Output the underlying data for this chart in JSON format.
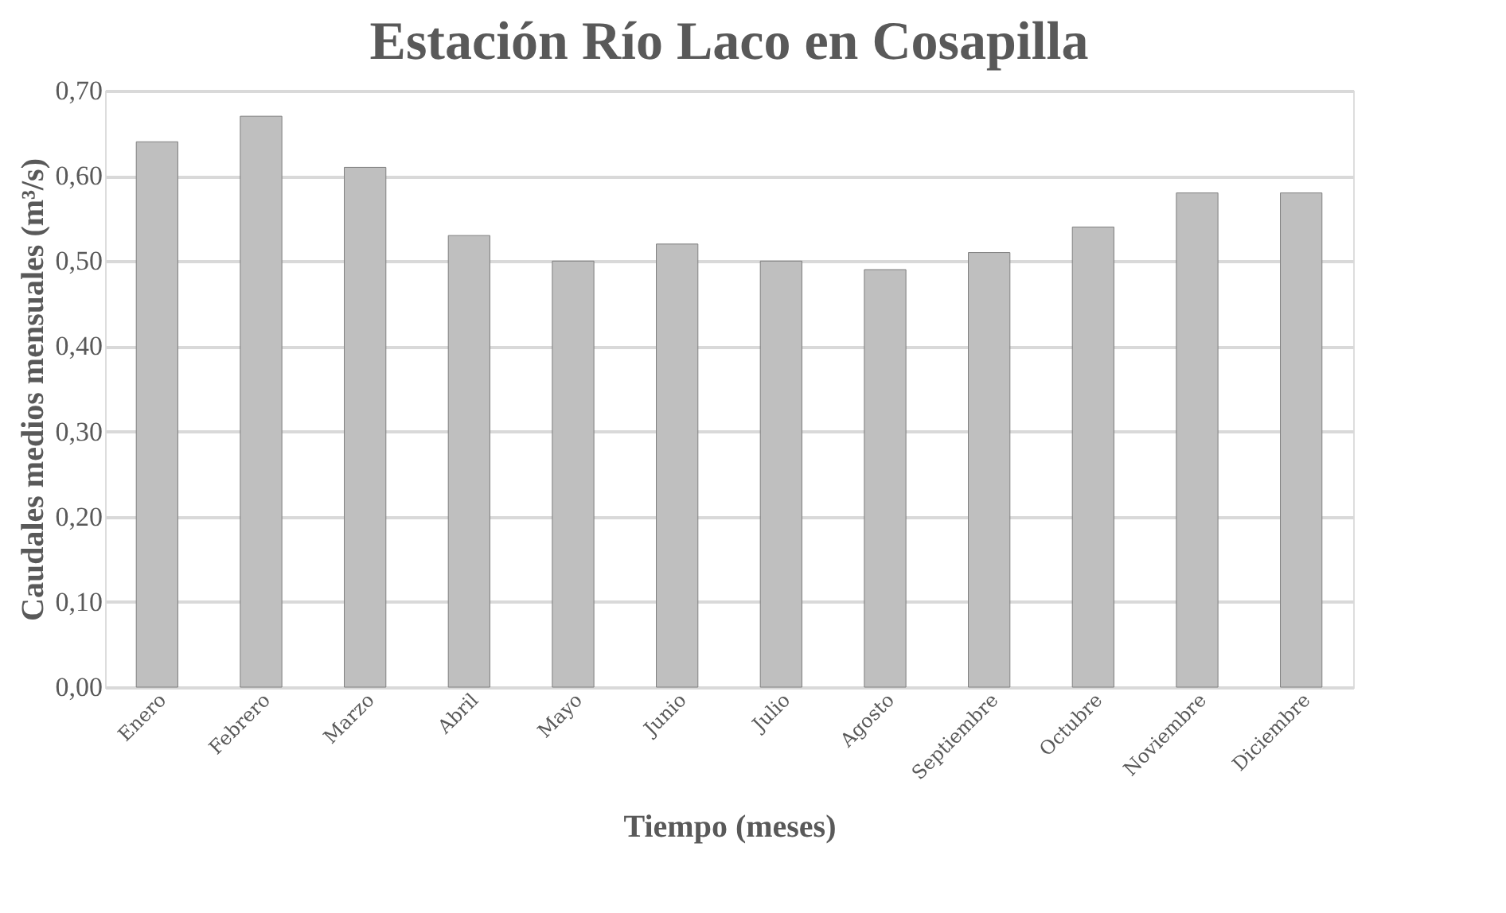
{
  "chart_data": {
    "type": "bar",
    "title": "Estación Río Laco en Cosapilla",
    "xlabel": "Tiempo (meses)",
    "ylabel": "Caudales medios mensuales (m³/s)",
    "categories": [
      "Enero",
      "Febrero",
      "Marzo",
      "Abril",
      "Mayo",
      "Junio",
      "Julio",
      "Agosto",
      "Septiembre",
      "Octubre",
      "Noviembre",
      "Diciembre"
    ],
    "values": [
      0.64,
      0.67,
      0.61,
      0.53,
      0.5,
      0.52,
      0.5,
      0.49,
      0.51,
      0.54,
      0.58,
      0.58
    ],
    "color": "#bfbfbf",
    "ylim": [
      0,
      0.7
    ],
    "yticks": [
      {
        "value": 0,
        "label": "0,00"
      },
      {
        "value": 0.1,
        "label": "0,10"
      },
      {
        "value": 0.2,
        "label": "0,20"
      },
      {
        "value": 0.3,
        "label": "0,30"
      },
      {
        "value": 0.4,
        "label": "0,40"
      },
      {
        "value": 0.5,
        "label": "0,50"
      },
      {
        "value": 0.6,
        "label": "0,60"
      },
      {
        "value": 0.7,
        "label": "0,70"
      }
    ],
    "grid": "y"
  }
}
